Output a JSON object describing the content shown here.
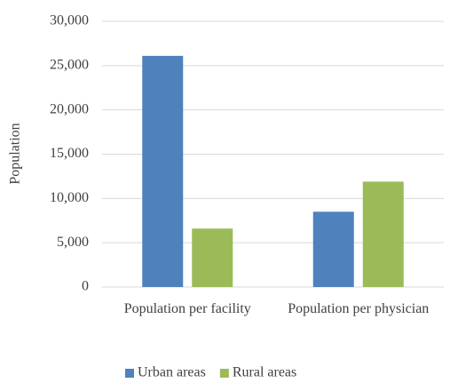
{
  "chart_data": {
    "type": "bar",
    "y_label": "Population",
    "categories": [
      "Population per facility",
      "Population per physician"
    ],
    "series": [
      {
        "name": "Urban areas",
        "color": "#4f81bd",
        "values": [
          26100,
          8500
        ]
      },
      {
        "name": "Rural areas",
        "color": "#9bbb59",
        "values": [
          6600,
          11900
        ]
      }
    ],
    "ylim": [
      0,
      30000
    ],
    "yticks": [
      0,
      {
        "value": 5000,
        "label": "5,000"
      },
      {
        "value": 10000,
        "label": "10,000"
      },
      {
        "value": 15000,
        "label": "15,000"
      },
      {
        "value": 20000,
        "label": "20,000"
      },
      {
        "value": 25000,
        "label": "25,000"
      },
      {
        "value": 30000,
        "label": "30,000"
      }
    ],
    "grid": true,
    "legend": "bottom"
  }
}
